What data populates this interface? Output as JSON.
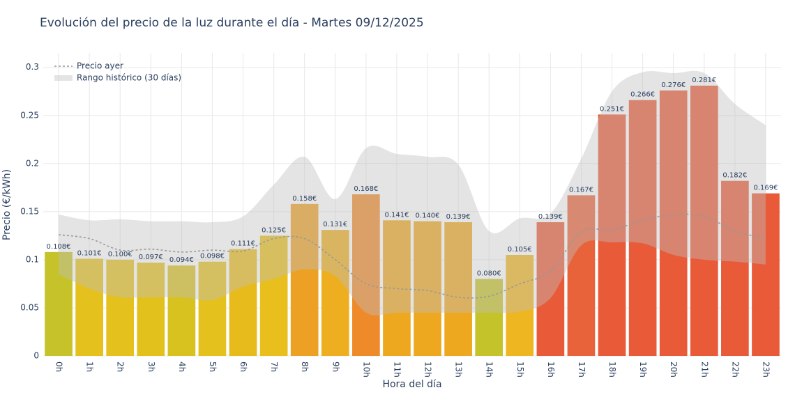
{
  "chart_data": {
    "type": "bar",
    "title": "Evolución del precio de la luz durante el día - Martes 09/12/2025",
    "xlabel": "Hora del día",
    "ylabel": "Precio (€/kWh)",
    "categories": [
      "0h",
      "1h",
      "2h",
      "3h",
      "4h",
      "5h",
      "6h",
      "7h",
      "8h",
      "9h",
      "10h",
      "11h",
      "12h",
      "13h",
      "14h",
      "15h",
      "16h",
      "17h",
      "18h",
      "19h",
      "20h",
      "21h",
      "22h",
      "23h"
    ],
    "values": [
      0.108,
      0.101,
      0.1,
      0.097,
      0.094,
      0.098,
      0.111,
      0.125,
      0.158,
      0.131,
      0.168,
      0.141,
      0.14,
      0.139,
      0.08,
      0.105,
      0.139,
      0.167,
      0.251,
      0.266,
      0.276,
      0.281,
      0.182,
      0.169
    ],
    "value_labels": [
      "0.108€",
      "0.101€",
      "0.100€",
      "0.097€",
      "0.094€",
      "0.098€",
      "0.111€",
      "0.125€",
      "0.158€",
      "0.131€",
      "0.168€",
      "0.141€",
      "0.140€",
      "0.139€",
      "0.080€",
      "0.105€",
      "0.139€",
      "0.167€",
      "0.251€",
      "0.266€",
      "0.276€",
      "0.281€",
      "0.182€",
      "0.169€"
    ],
    "colors": [
      "#c6c32a",
      "#e4c11c",
      "#e4c11c",
      "#e3c11c",
      "#d8c21f",
      "#e4c11c",
      "#e8bb1c",
      "#e8bf1c",
      "#eca024",
      "#edaf1f",
      "#ef8a2a",
      "#eea820",
      "#eea820",
      "#eea820",
      "#c4c32a",
      "#eeb620",
      "#e85a38",
      "#e8633a",
      "#e85a38",
      "#e85a38",
      "#e85a38",
      "#e85a38",
      "#e85a38",
      "#e85a38"
    ],
    "line": {
      "name": "Precio ayer",
      "color": "#999999",
      "values": [
        0.126,
        0.122,
        0.11,
        0.111,
        0.108,
        0.11,
        0.109,
        0.122,
        0.122,
        0.1,
        0.075,
        0.07,
        0.068,
        0.061,
        0.062,
        0.075,
        0.088,
        0.129,
        0.131,
        0.141,
        0.147,
        0.145,
        0.13,
        0.122
      ]
    },
    "band": {
      "name": "Rango histórico (30 días)",
      "color": "rgba(190,190,190,0.42)",
      "upper": [
        0.147,
        0.141,
        0.142,
        0.14,
        0.14,
        0.139,
        0.145,
        0.178,
        0.207,
        0.163,
        0.216,
        0.21,
        0.207,
        0.199,
        0.13,
        0.143,
        0.148,
        0.205,
        0.275,
        0.295,
        0.294,
        0.294,
        0.262,
        0.24
      ],
      "lower": [
        0.085,
        0.07,
        0.061,
        0.061,
        0.061,
        0.058,
        0.072,
        0.08,
        0.09,
        0.083,
        0.045,
        0.045,
        0.045,
        0.045,
        0.045,
        0.046,
        0.06,
        0.115,
        0.118,
        0.117,
        0.105,
        0.1,
        0.098,
        0.095
      ]
    },
    "ylim": [
      0,
      0.315
    ],
    "yticks": [
      0,
      0.05,
      0.1,
      0.15,
      0.2,
      0.25,
      0.3
    ],
    "grid": true
  }
}
